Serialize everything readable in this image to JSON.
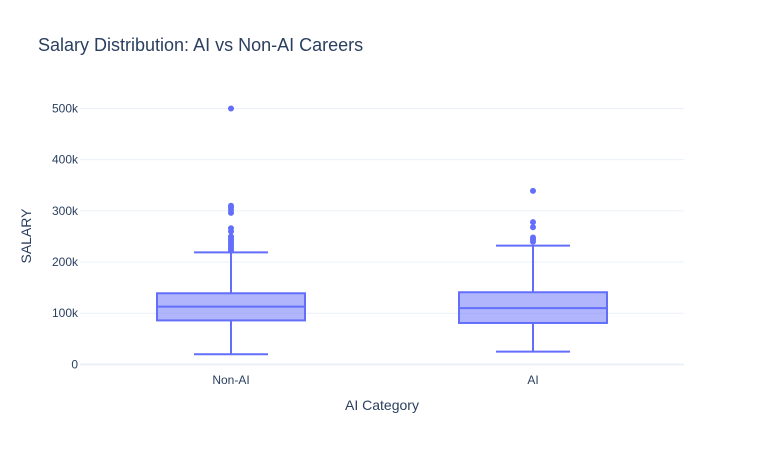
{
  "chart_data": {
    "type": "box",
    "title": "Salary Distribution: AI vs Non-AI Careers",
    "xlabel": "AI Category",
    "ylabel": "SALARY",
    "ylim": [
      -5000,
      540000
    ],
    "yticks": [
      0,
      100000,
      200000,
      300000,
      400000,
      500000
    ],
    "ytick_labels": [
      "0",
      "100k",
      "200k",
      "300k",
      "400k",
      "500k"
    ],
    "grid": true,
    "categories": [
      "Non-AI",
      "AI"
    ],
    "boxes": [
      {
        "category": "Non-AI",
        "min": 20000,
        "q1": 86000,
        "median": 113000,
        "q3": 139000,
        "max": 219000,
        "outliers": [
          222000,
          226000,
          230000,
          234000,
          238000,
          242000,
          246000,
          250000,
          260000,
          266000,
          296000,
          302000,
          307000,
          310000,
          500000
        ]
      },
      {
        "category": "AI",
        "min": 25000,
        "q1": 81000,
        "median": 110000,
        "q3": 141000,
        "max": 232000,
        "outliers": [
          240000,
          244000,
          248000,
          268000,
          278000,
          339000
        ]
      }
    ],
    "colors": {
      "line": "#636efa",
      "fill": "rgba(99,110,250,0.5)",
      "grid": "#ebf0f8",
      "zeroline": "#ebf0f8",
      "text": "#2a3f5f"
    }
  }
}
